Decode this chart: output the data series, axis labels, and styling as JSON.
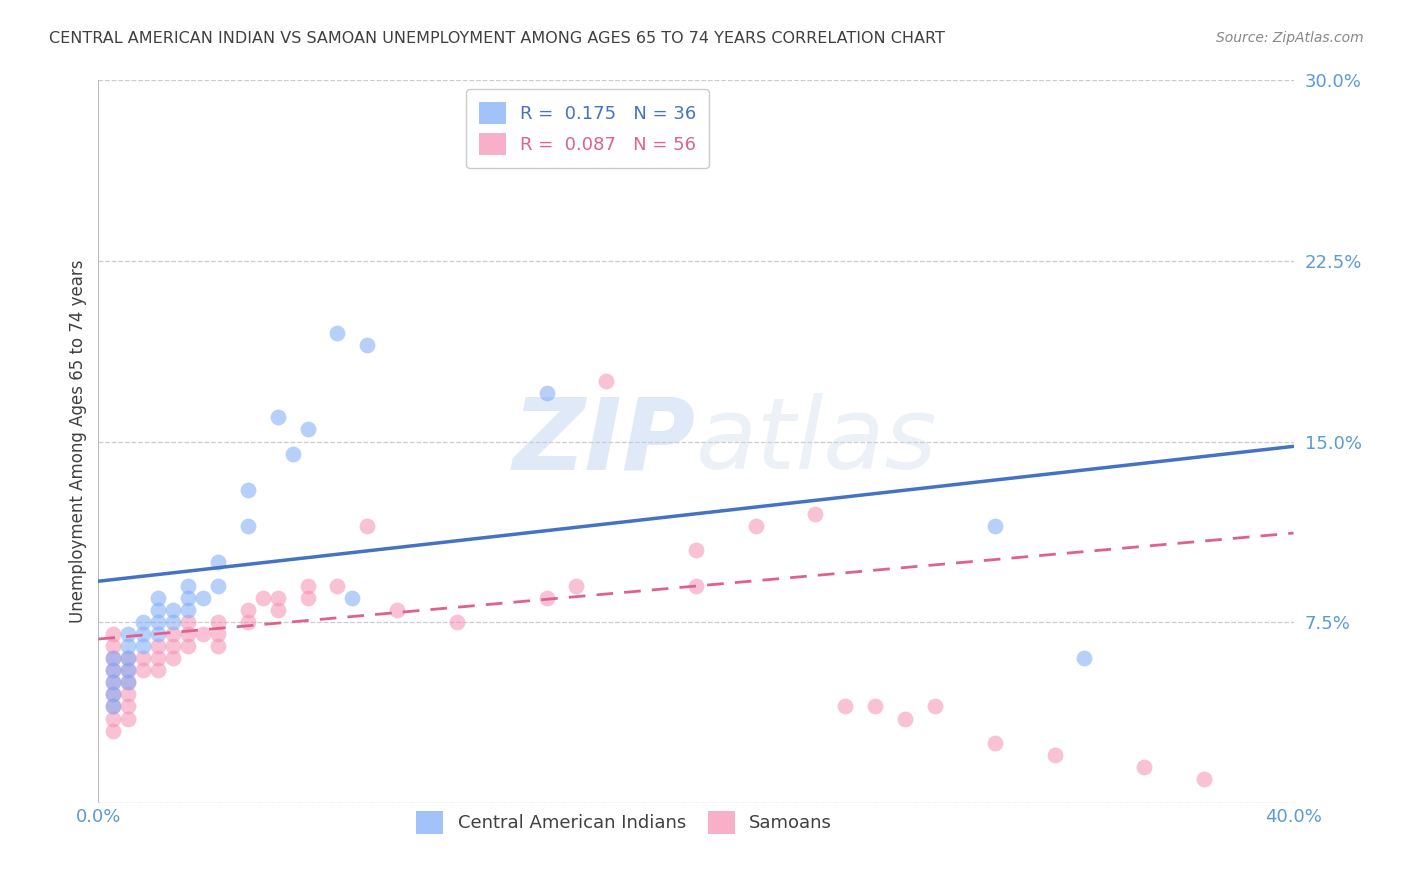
{
  "title": "CENTRAL AMERICAN INDIAN VS SAMOAN UNEMPLOYMENT AMONG AGES 65 TO 74 YEARS CORRELATION CHART",
  "source": "Source: ZipAtlas.com",
  "ylabel": "Unemployment Among Ages 65 to 74 years",
  "xlim": [
    0.0,
    0.4
  ],
  "ylim": [
    0.0,
    0.3
  ],
  "xticks": [
    0.0,
    0.05,
    0.1,
    0.15,
    0.2,
    0.25,
    0.3,
    0.35,
    0.4
  ],
  "yticks": [
    0.0,
    0.075,
    0.15,
    0.225,
    0.3
  ],
  "ytick_labels": [
    "",
    "7.5%",
    "15.0%",
    "22.5%",
    "30.0%"
  ],
  "xtick_labels": [
    "0.0%",
    "",
    "",
    "",
    "",
    "",
    "",
    "",
    "40.0%"
  ],
  "grid_color": "#cccccc",
  "background_color": "#ffffff",
  "watermark_zip": "ZIP",
  "watermark_atlas": "atlas",
  "legend_r1": "R =  0.175",
  "legend_n1": "N = 36",
  "legend_r2": "R =  0.087",
  "legend_n2": "N = 56",
  "blue_color": "#7baaf7",
  "pink_color": "#f48fb1",
  "blue_line_color": "#4472c4",
  "pink_line_color": "#e06090",
  "label_color": "#5b9bd5",
  "title_color": "#404040",
  "source_color": "#888888",
  "ylabel_color": "#404040",
  "blue_scatter_x": [
    0.005,
    0.005,
    0.005,
    0.005,
    0.005,
    0.01,
    0.01,
    0.01,
    0.01,
    0.01,
    0.015,
    0.015,
    0.015,
    0.02,
    0.02,
    0.02,
    0.02,
    0.025,
    0.025,
    0.03,
    0.03,
    0.03,
    0.035,
    0.04,
    0.04,
    0.05,
    0.05,
    0.06,
    0.065,
    0.07,
    0.08,
    0.085,
    0.09,
    0.15,
    0.3,
    0.33
  ],
  "blue_scatter_y": [
    0.04,
    0.045,
    0.05,
    0.055,
    0.06,
    0.05,
    0.055,
    0.06,
    0.065,
    0.07,
    0.065,
    0.07,
    0.075,
    0.07,
    0.075,
    0.08,
    0.085,
    0.075,
    0.08,
    0.08,
    0.085,
    0.09,
    0.085,
    0.09,
    0.1,
    0.115,
    0.13,
    0.16,
    0.145,
    0.155,
    0.195,
    0.085,
    0.19,
    0.17,
    0.115,
    0.06
  ],
  "pink_scatter_x": [
    0.005,
    0.005,
    0.005,
    0.005,
    0.005,
    0.005,
    0.005,
    0.005,
    0.005,
    0.01,
    0.01,
    0.01,
    0.01,
    0.01,
    0.01,
    0.015,
    0.015,
    0.02,
    0.02,
    0.02,
    0.025,
    0.025,
    0.025,
    0.03,
    0.03,
    0.03,
    0.035,
    0.04,
    0.04,
    0.04,
    0.05,
    0.05,
    0.055,
    0.06,
    0.06,
    0.07,
    0.07,
    0.08,
    0.09,
    0.1,
    0.12,
    0.15,
    0.16,
    0.2,
    0.22,
    0.24,
    0.28,
    0.2,
    0.26,
    0.17,
    0.25,
    0.27,
    0.3,
    0.32,
    0.35,
    0.37
  ],
  "pink_scatter_y": [
    0.03,
    0.035,
    0.04,
    0.045,
    0.05,
    0.055,
    0.06,
    0.065,
    0.07,
    0.035,
    0.04,
    0.045,
    0.05,
    0.055,
    0.06,
    0.055,
    0.06,
    0.055,
    0.06,
    0.065,
    0.06,
    0.065,
    0.07,
    0.065,
    0.07,
    0.075,
    0.07,
    0.065,
    0.07,
    0.075,
    0.075,
    0.08,
    0.085,
    0.08,
    0.085,
    0.085,
    0.09,
    0.09,
    0.115,
    0.08,
    0.075,
    0.085,
    0.09,
    0.105,
    0.115,
    0.12,
    0.04,
    0.09,
    0.04,
    0.175,
    0.04,
    0.035,
    0.025,
    0.02,
    0.015,
    0.01
  ],
  "blue_trend_x": [
    0.0,
    0.4
  ],
  "blue_trend_y": [
    0.092,
    0.148
  ],
  "pink_trend_x": [
    0.0,
    0.4
  ],
  "pink_trend_y": [
    0.068,
    0.112
  ]
}
